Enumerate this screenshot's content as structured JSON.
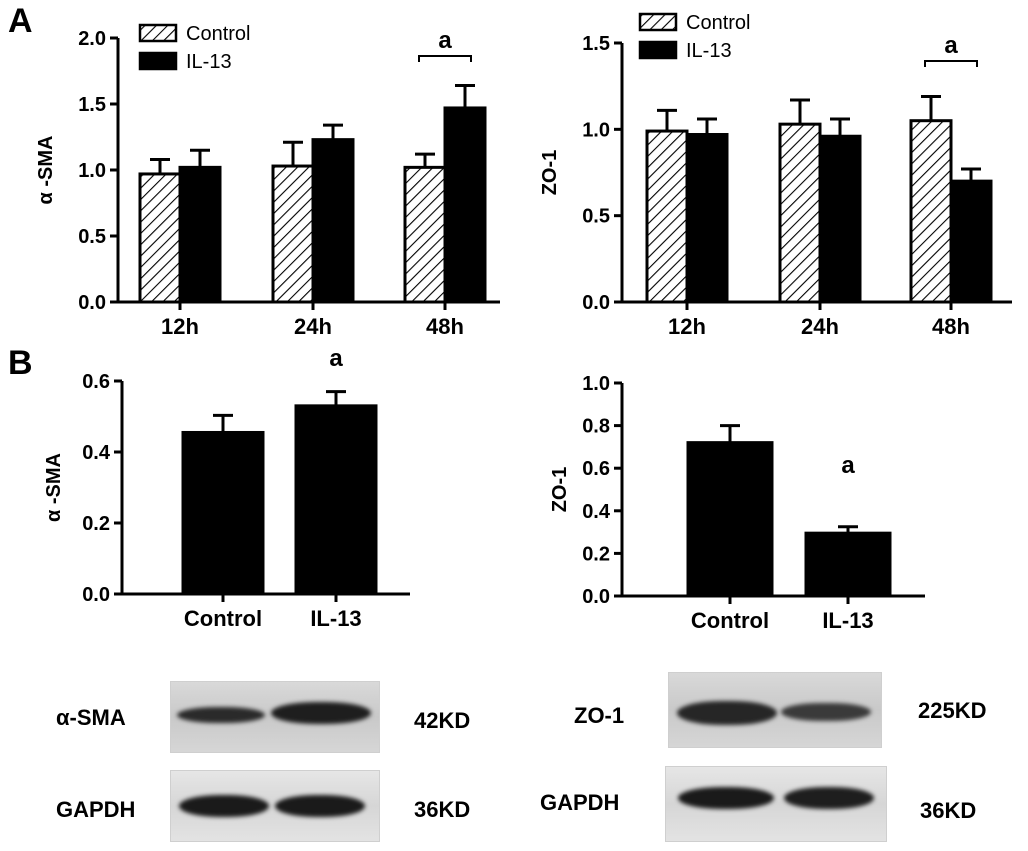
{
  "panels": {
    "a": "A",
    "b": "B"
  },
  "chart_data": [
    {
      "type": "bar",
      "categories": [
        "12h",
        "24h",
        "48h"
      ],
      "series": [
        {
          "name": "Control",
          "values": [
            0.97,
            1.03,
            1.02
          ],
          "errors": [
            0.11,
            0.18,
            0.1
          ]
        },
        {
          "name": "IL-13",
          "values": [
            1.02,
            1.23,
            1.47
          ],
          "errors": [
            0.13,
            0.11,
            0.17
          ]
        }
      ],
      "ylabel": "α -SMA",
      "ylim": [
        0,
        2.0
      ],
      "yticks": [
        "0.0",
        "0.5",
        "1.0",
        "1.5",
        "2.0"
      ],
      "annotations": [
        {
          "text": "a",
          "category": "48h"
        }
      ],
      "legend": "top-left"
    },
    {
      "type": "bar",
      "categories": [
        "12h",
        "24h",
        "48h"
      ],
      "series": [
        {
          "name": "Control",
          "values": [
            0.99,
            1.03,
            1.05
          ],
          "errors": [
            0.12,
            0.14,
            0.14
          ]
        },
        {
          "name": "IL-13",
          "values": [
            0.97,
            0.96,
            0.7
          ],
          "errors": [
            0.09,
            0.1,
            0.07
          ]
        }
      ],
      "ylabel": "ZO-1",
      "ylim": [
        0,
        1.5
      ],
      "yticks": [
        "0.0",
        "0.5",
        "1.0",
        "1.5"
      ],
      "annotations": [
        {
          "text": "a",
          "category": "48h"
        }
      ],
      "legend": "top-left"
    },
    {
      "type": "bar",
      "categories": [
        "Control",
        "IL-13"
      ],
      "values": [
        0.455,
        0.53
      ],
      "errors": [
        0.048,
        0.04
      ],
      "ylabel": "α -SMA",
      "ylim": [
        0,
        0.6
      ],
      "yticks": [
        "0.0",
        "0.2",
        "0.4",
        "0.6"
      ],
      "annotations": [
        {
          "text": "a",
          "category": "IL-13"
        }
      ]
    },
    {
      "type": "bar",
      "categories": [
        "Control",
        "IL-13"
      ],
      "values": [
        0.72,
        0.295
      ],
      "errors": [
        0.08,
        0.03
      ],
      "ylabel": "ZO-1",
      "ylim": [
        0,
        1.0
      ],
      "yticks": [
        "0.0",
        "0.2",
        "0.4",
        "0.6",
        "0.8",
        "1.0"
      ],
      "annotations": [
        {
          "text": "a",
          "category": "IL-13"
        }
      ]
    }
  ],
  "blots": {
    "left": {
      "protein": "α-SMA",
      "protein_kd": "42KD",
      "loading": "GAPDH",
      "loading_kd": "36KD"
    },
    "right": {
      "protein": "ZO-1",
      "protein_kd": "225KD",
      "loading": "GAPDH",
      "loading_kd": "36KD"
    }
  }
}
